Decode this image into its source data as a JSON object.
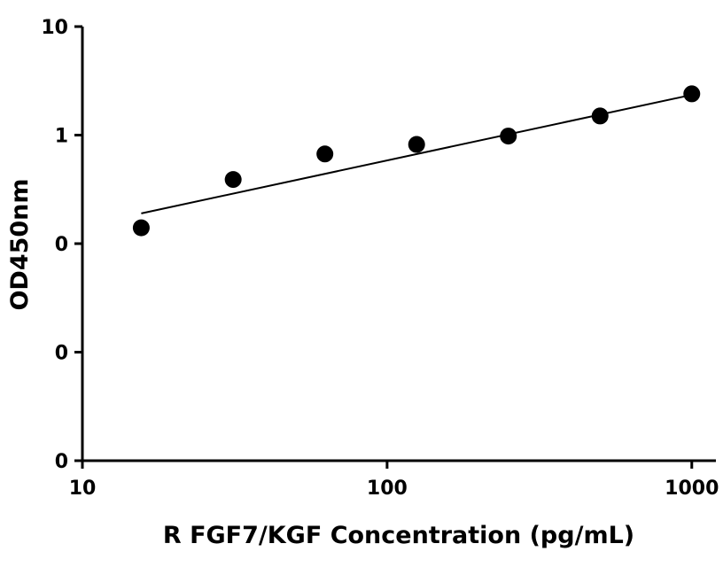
{
  "chart_data": {
    "type": "scatter",
    "title": "",
    "xlabel": "R FGF7/KGF Concentration (pg/mL)",
    "ylabel": "OD450nm",
    "x_scale": "log",
    "y_scale": "log",
    "xlim": [
      10,
      1200
    ],
    "ylim": [
      0.001,
      10
    ],
    "x_ticks": [
      {
        "value": 10,
        "label": "10"
      },
      {
        "value": 100,
        "label": "100"
      },
      {
        "value": 1000,
        "label": "1000"
      }
    ],
    "y_ticks": [
      {
        "value": 0.001,
        "label": "0"
      },
      {
        "value": 0.01,
        "label": "0"
      },
      {
        "value": 0.1,
        "label": "0"
      },
      {
        "value": 1,
        "label": "1"
      },
      {
        "value": 10,
        "label": "10"
      }
    ],
    "series": [
      {
        "x": [
          15.6,
          31.25,
          62.5,
          125,
          250,
          500,
          1000
        ],
        "y": [
          0.14,
          0.39,
          0.67,
          0.82,
          0.98,
          1.5,
          2.4
        ]
      }
    ],
    "fit_line": {
      "x": [
        15.6,
        1000
      ],
      "y": [
        0.19,
        2.35
      ]
    },
    "grid": false,
    "legend": "none"
  }
}
